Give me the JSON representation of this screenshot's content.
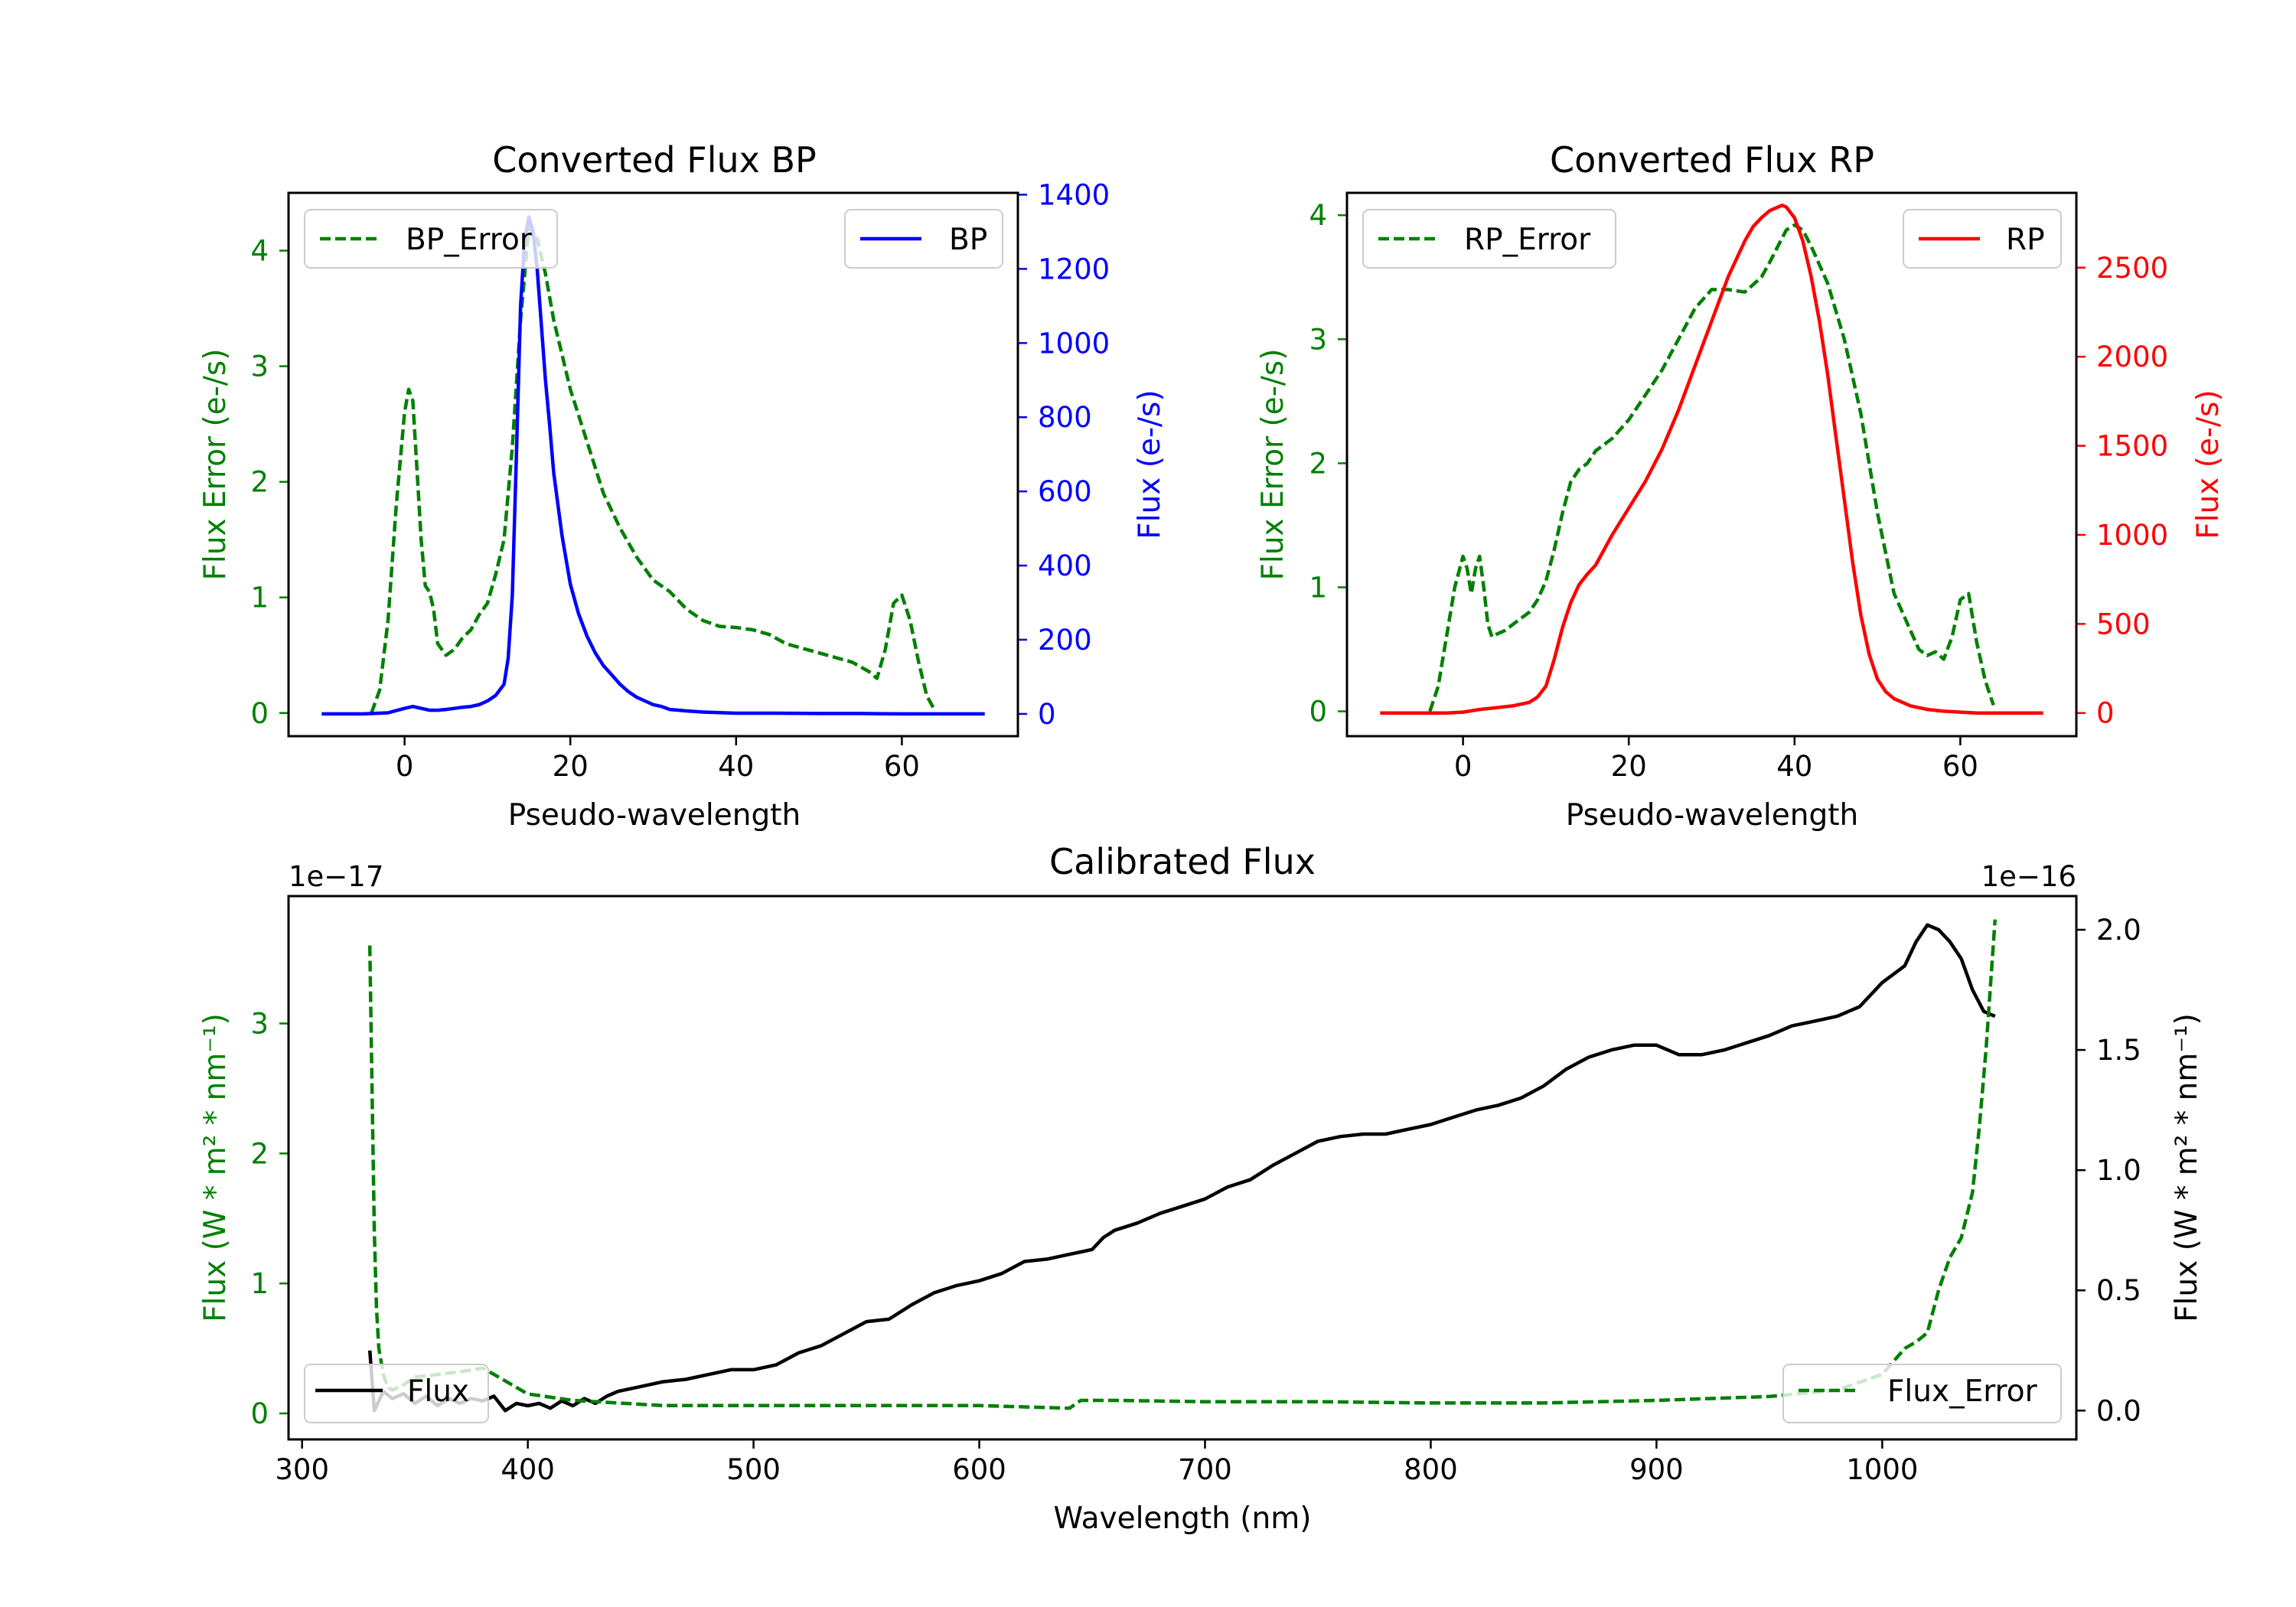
{
  "colors": {
    "green": "#008000",
    "blue": "#0000ff",
    "red": "#ff0000",
    "black": "#000000"
  },
  "chart_data": [
    {
      "id": "bp",
      "type": "line",
      "title": "Converted Flux BP",
      "xlabel": "Pseudo-wavelength",
      "ylabel_left": "Flux Error (e-/s)",
      "ylabel_right": "Flux (e-/s)",
      "xlim": [
        -14,
        74
      ],
      "ylim_left": [
        -0.2,
        4.5
      ],
      "ylim_right": [
        -60,
        1405
      ],
      "xticks": [
        0,
        20,
        40,
        60
      ],
      "yticks_left": [
        0,
        1,
        2,
        3,
        4
      ],
      "yticks_right": [
        0,
        200,
        400,
        600,
        800,
        1000,
        1200,
        1400
      ],
      "left_color": "green",
      "right_color": "blue",
      "series": [
        {
          "name": "BP_Error",
          "axis": "left",
          "style": "dashed",
          "color": "green",
          "legend": "top-left",
          "x": [
            -4,
            -3,
            -2,
            -1,
            0,
            0.5,
            1,
            1.5,
            2,
            2.5,
            3,
            3.5,
            4,
            5,
            6,
            7,
            8,
            9,
            10,
            11,
            12,
            13,
            14,
            15,
            16,
            17,
            18,
            19,
            20,
            22,
            24,
            26,
            28,
            30,
            32,
            34,
            36,
            38,
            40,
            42,
            44,
            46,
            48,
            50,
            52,
            54,
            56,
            57,
            58,
            59,
            60,
            61,
            62,
            63,
            64
          ],
          "values": [
            0,
            0.2,
            0.8,
            1.8,
            2.6,
            2.8,
            2.7,
            2.1,
            1.5,
            1.1,
            1.05,
            0.9,
            0.6,
            0.5,
            0.55,
            0.65,
            0.72,
            0.85,
            0.95,
            1.2,
            1.5,
            2.3,
            3.4,
            4.2,
            4.1,
            3.8,
            3.4,
            3.1,
            2.8,
            2.35,
            1.9,
            1.6,
            1.35,
            1.15,
            1.05,
            0.9,
            0.8,
            0.75,
            0.74,
            0.72,
            0.68,
            0.6,
            0.56,
            0.52,
            0.48,
            0.44,
            0.36,
            0.3,
            0.55,
            0.95,
            1.02,
            0.8,
            0.45,
            0.15,
            0.02
          ]
        },
        {
          "name": "BP",
          "axis": "right",
          "style": "solid",
          "color": "blue",
          "legend": "top-right",
          "x": [
            -10,
            -5,
            -2,
            0,
            1,
            2,
            3,
            4,
            5,
            6,
            7,
            8,
            9,
            10,
            11,
            12,
            12.5,
            13,
            13.5,
            14,
            14.5,
            15,
            15.5,
            16,
            16.5,
            17,
            17.5,
            18,
            19,
            20,
            21,
            22,
            23,
            24,
            25,
            26,
            27,
            28,
            29,
            30,
            31,
            32,
            34,
            36,
            40,
            45,
            50,
            55,
            60,
            65,
            70
          ],
          "values": [
            0,
            0,
            3,
            15,
            20,
            15,
            10,
            10,
            12,
            15,
            18,
            20,
            25,
            35,
            50,
            80,
            150,
            320,
            700,
            1100,
            1280,
            1340,
            1300,
            1200,
            1050,
            900,
            780,
            650,
            480,
            350,
            270,
            210,
            165,
            130,
            105,
            80,
            60,
            45,
            35,
            25,
            20,
            12,
            8,
            5,
            2,
            2,
            1,
            1,
            0,
            0,
            0
          ]
        }
      ]
    },
    {
      "id": "rp",
      "type": "line",
      "title": "Converted Flux RP",
      "xlabel": "Pseudo-wavelength",
      "ylabel_left": "Flux Error (e-/s)",
      "ylabel_right": "Flux (e-/s)",
      "xlim": [
        -14,
        74
      ],
      "ylim_left": [
        -0.2,
        4.18
      ],
      "ylim_right": [
        -130,
        2920
      ],
      "xticks": [
        0,
        20,
        40,
        60
      ],
      "yticks_left": [
        0,
        1,
        2,
        3,
        4
      ],
      "yticks_right": [
        0,
        500,
        1000,
        1500,
        2000,
        2500
      ],
      "left_color": "green",
      "right_color": "red",
      "series": [
        {
          "name": "RP_Error",
          "axis": "left",
          "style": "dashed",
          "color": "green",
          "legend": "top-left",
          "x": [
            -4,
            -3,
            -2,
            -1,
            0,
            0.5,
            1,
            1.5,
            2,
            2.5,
            3,
            3.5,
            4,
            5,
            6,
            7,
            8,
            9,
            10,
            11,
            12,
            13,
            14,
            15,
            16,
            18,
            20,
            22,
            24,
            26,
            28,
            30,
            32,
            34,
            36,
            37,
            38,
            39,
            40,
            41,
            42,
            43,
            44,
            46,
            48,
            50,
            52,
            54,
            55,
            56,
            57,
            58,
            59,
            60,
            61,
            62,
            63,
            64
          ],
          "values": [
            0,
            0.2,
            0.6,
            1.0,
            1.25,
            1.15,
            0.95,
            1.15,
            1.25,
            1.0,
            0.7,
            0.6,
            0.62,
            0.65,
            0.7,
            0.75,
            0.8,
            0.9,
            1.05,
            1.3,
            1.6,
            1.85,
            1.95,
            2.0,
            2.1,
            2.2,
            2.35,
            2.55,
            2.75,
            3.0,
            3.25,
            3.4,
            3.4,
            3.38,
            3.5,
            3.62,
            3.75,
            3.88,
            3.92,
            3.88,
            3.75,
            3.6,
            3.45,
            3.0,
            2.4,
            1.6,
            0.95,
            0.65,
            0.5,
            0.45,
            0.48,
            0.42,
            0.6,
            0.9,
            0.95,
            0.55,
            0.25,
            0.05
          ]
        },
        {
          "name": "RP",
          "axis": "right",
          "style": "solid",
          "color": "red",
          "legend": "top-right",
          "x": [
            -10,
            -5,
            -2,
            0,
            2,
            4,
            6,
            8,
            9,
            10,
            11,
            12,
            13,
            14,
            15,
            16,
            18,
            20,
            22,
            24,
            26,
            28,
            30,
            32,
            34,
            35,
            36,
            37,
            38,
            38.5,
            39,
            40,
            41,
            42,
            43,
            44,
            45,
            46,
            47,
            48,
            49,
            50,
            51,
            52,
            54,
            56,
            58,
            60,
            62,
            65,
            70
          ],
          "values": [
            0,
            0,
            0,
            5,
            20,
            30,
            40,
            60,
            90,
            150,
            300,
            480,
            620,
            720,
            780,
            830,
            1000,
            1150,
            1300,
            1480,
            1700,
            1950,
            2200,
            2450,
            2650,
            2730,
            2780,
            2820,
            2840,
            2850,
            2840,
            2780,
            2650,
            2450,
            2200,
            1900,
            1550,
            1200,
            850,
            550,
            330,
            190,
            120,
            80,
            40,
            20,
            10,
            5,
            0,
            0,
            0
          ]
        }
      ]
    },
    {
      "id": "cal",
      "type": "line",
      "title": "Calibrated Flux",
      "xlabel": "Wavelength (nm)",
      "ylabel_left": "Flux (W * m² * nm⁻¹)",
      "ylabel_right": "Flux (W * m² * nm⁻¹)",
      "offset_left": "1e−17",
      "offset_right": "1e−16",
      "xlim": [
        294,
        1086
      ],
      "ylim_left": [
        -0.2,
        3.98
      ],
      "ylim_right": [
        -0.12,
        2.14
      ],
      "xticks": [
        300,
        400,
        500,
        600,
        700,
        800,
        900,
        1000
      ],
      "yticks_left": [
        0,
        1,
        2,
        3
      ],
      "yticks_right": [
        0.0,
        0.5,
        1.0,
        1.5,
        2.0
      ],
      "left_color": "green",
      "right_color": "black",
      "series": [
        {
          "name": "Flux",
          "axis": "right",
          "style": "solid",
          "color": "black",
          "legend": "bottom-left",
          "x": [
            330,
            332,
            336,
            340,
            345,
            350,
            355,
            360,
            365,
            370,
            375,
            380,
            385,
            390,
            395,
            400,
            405,
            410,
            415,
            420,
            425,
            430,
            435,
            440,
            450,
            460,
            470,
            480,
            490,
            500,
            510,
            520,
            530,
            540,
            550,
            560,
            570,
            580,
            590,
            600,
            610,
            620,
            630,
            640,
            645,
            650,
            655,
            660,
            670,
            680,
            690,
            700,
            710,
            720,
            730,
            740,
            750,
            760,
            770,
            780,
            790,
            800,
            810,
            820,
            830,
            840,
            850,
            860,
            870,
            880,
            890,
            900,
            910,
            920,
            930,
            940,
            950,
            960,
            970,
            980,
            990,
            1000,
            1010,
            1015,
            1020,
            1025,
            1030,
            1035,
            1040,
            1045,
            1050
          ],
          "values": [
            0.25,
            0.0,
            0.08,
            0.05,
            0.07,
            0.03,
            0.06,
            0.02,
            0.05,
            0.03,
            0.05,
            0.04,
            0.06,
            0.0,
            0.03,
            0.02,
            0.03,
            0.01,
            0.04,
            0.02,
            0.05,
            0.03,
            0.06,
            0.08,
            0.1,
            0.12,
            0.13,
            0.15,
            0.17,
            0.17,
            0.19,
            0.24,
            0.27,
            0.32,
            0.37,
            0.38,
            0.44,
            0.49,
            0.52,
            0.54,
            0.57,
            0.62,
            0.63,
            0.65,
            0.66,
            0.67,
            0.72,
            0.75,
            0.78,
            0.82,
            0.85,
            0.88,
            0.93,
            0.96,
            1.02,
            1.07,
            1.12,
            1.14,
            1.15,
            1.15,
            1.17,
            1.19,
            1.22,
            1.25,
            1.27,
            1.3,
            1.35,
            1.42,
            1.47,
            1.5,
            1.52,
            1.52,
            1.48,
            1.48,
            1.5,
            1.53,
            1.56,
            1.6,
            1.62,
            1.64,
            1.68,
            1.78,
            1.85,
            1.95,
            2.02,
            2.0,
            1.95,
            1.88,
            1.75,
            1.66,
            1.64
          ]
        },
        {
          "name": "Flux_Error",
          "axis": "left",
          "style": "dashed",
          "color": "green",
          "legend": "bottom-right",
          "x": [
            330,
            331,
            332,
            333,
            334,
            336,
            338,
            340,
            345,
            350,
            360,
            370,
            380,
            385,
            390,
            400,
            420,
            440,
            460,
            480,
            500,
            550,
            600,
            640,
            645,
            660,
            700,
            750,
            800,
            850,
            900,
            950,
            980,
            1000,
            1010,
            1015,
            1020,
            1025,
            1030,
            1035,
            1040,
            1043,
            1046,
            1048,
            1050
          ],
          "values": [
            3.6,
            2.5,
            1.4,
            0.8,
            0.5,
            0.3,
            0.2,
            0.18,
            0.22,
            0.28,
            0.3,
            0.32,
            0.35,
            0.3,
            0.25,
            0.15,
            0.1,
            0.08,
            0.06,
            0.06,
            0.06,
            0.06,
            0.06,
            0.04,
            0.1,
            0.1,
            0.09,
            0.09,
            0.08,
            0.08,
            0.1,
            0.13,
            0.18,
            0.3,
            0.5,
            0.55,
            0.62,
            0.95,
            1.2,
            1.35,
            1.7,
            2.2,
            2.8,
            3.3,
            3.8
          ]
        }
      ]
    }
  ]
}
